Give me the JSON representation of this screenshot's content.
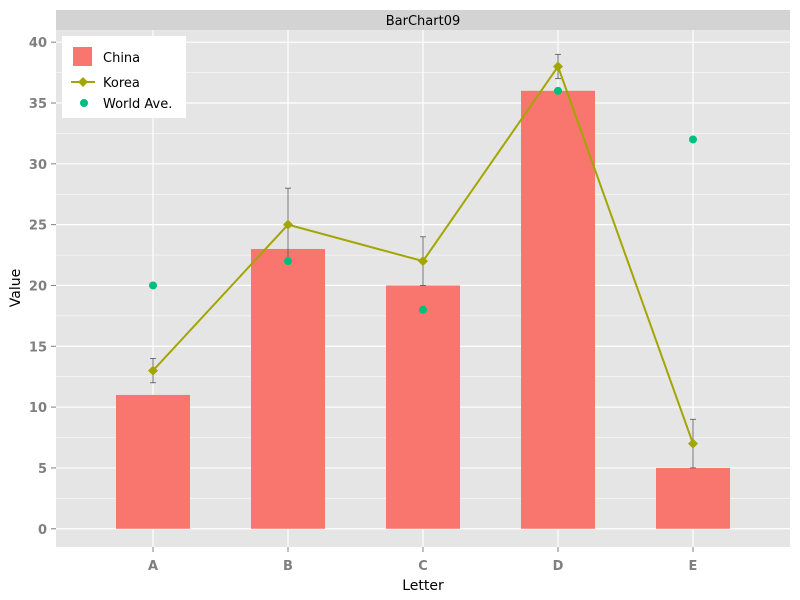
{
  "chart_data": {
    "type": "bar",
    "title": "BarChart09",
    "xlabel": "Letter",
    "ylabel": "Value",
    "categories": [
      "A",
      "B",
      "C",
      "D",
      "E"
    ],
    "ylim": [
      -1.5,
      41
    ],
    "yticks": [
      0,
      5,
      10,
      15,
      20,
      25,
      30,
      35,
      40
    ],
    "ytick_labels": [
      "0",
      "5",
      "10",
      "15",
      "20",
      "25",
      "30",
      "35",
      "40"
    ],
    "grid": true,
    "legend_position": "top-left",
    "series": [
      {
        "name": "China",
        "kind": "bar",
        "color": "#F8766D",
        "values": [
          11,
          23,
          20,
          36,
          5
        ]
      },
      {
        "name": "Korea",
        "kind": "line",
        "marker": "diamond",
        "color": "#A3A500",
        "values": [
          13,
          25,
          22,
          38,
          7
        ],
        "error_upper": [
          14,
          28,
          24,
          39,
          9
        ],
        "error_lower": [
          12,
          22,
          20,
          37,
          5
        ]
      },
      {
        "name": "World Ave.",
        "kind": "point",
        "color": "#00BF7D",
        "values": [
          20,
          22,
          18,
          36,
          32
        ]
      }
    ]
  },
  "colors": {
    "panel_background": "#E5E5E5",
    "strip_background": "#D3D3D3",
    "grid_line": "#FFFFFF",
    "error_bar": "#555555"
  }
}
